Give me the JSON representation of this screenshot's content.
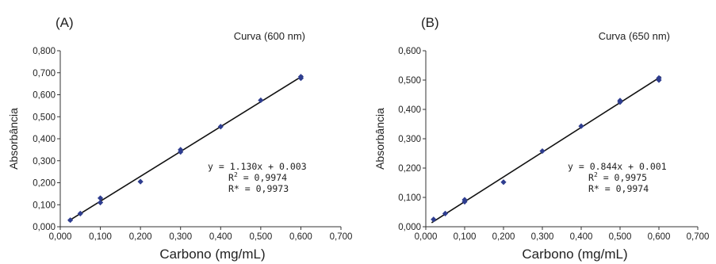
{
  "chart_data": [
    {
      "type": "scatter",
      "panel_label": "(A)",
      "title": "Curva (600 nm)",
      "xlabel": "Carbono (mg/mL)",
      "ylabel": "Absorbância",
      "xlim": [
        0,
        0.7
      ],
      "ylim": [
        0,
        0.8
      ],
      "x_ticks": [
        "0,000",
        "0,100",
        "0,200",
        "0,300",
        "0,400",
        "0,500",
        "0,600",
        "0,700"
      ],
      "y_ticks": [
        "0,000",
        "0,100",
        "0,200",
        "0,300",
        "0,400",
        "0,500",
        "0,600",
        "0,700",
        "0,800"
      ],
      "x_tick_values": [
        0,
        0.1,
        0.2,
        0.3,
        0.4,
        0.5,
        0.6,
        0.7
      ],
      "y_tick_values": [
        0,
        0.1,
        0.2,
        0.3,
        0.4,
        0.5,
        0.6,
        0.7,
        0.8
      ],
      "points": [
        {
          "x": 0.025,
          "y": 0.03
        },
        {
          "x": 0.05,
          "y": 0.06
        },
        {
          "x": 0.1,
          "y": 0.11
        },
        {
          "x": 0.1,
          "y": 0.13
        },
        {
          "x": 0.2,
          "y": 0.205
        },
        {
          "x": 0.3,
          "y": 0.34
        },
        {
          "x": 0.3,
          "y": 0.35
        },
        {
          "x": 0.4,
          "y": 0.455
        },
        {
          "x": 0.5,
          "y": 0.575
        },
        {
          "x": 0.6,
          "y": 0.675
        },
        {
          "x": 0.6,
          "y": 0.682
        }
      ],
      "fit": {
        "slope": 1.13,
        "intercept": 0.003,
        "x_range": [
          0.02,
          0.605
        ]
      },
      "equation": {
        "line1": "y = 1.130x + 0.003",
        "line2_prefix": "R",
        "line2_sup": "2",
        "line2_value": " = 0,9974",
        "line3": "R* = 0,9973"
      },
      "marker_color": "#2e3d8f",
      "line_color": "#111111"
    },
    {
      "type": "scatter",
      "panel_label": "(B)",
      "title": "Curva (650 nm)",
      "xlabel": "Carbono (mg/mL)",
      "ylabel": "Absorbância",
      "xlim": [
        0,
        0.7
      ],
      "ylim": [
        0,
        0.6
      ],
      "x_ticks": [
        "0,000",
        "0,100",
        "0,200",
        "0,300",
        "0,400",
        "0,500",
        "0,600",
        "0,700"
      ],
      "y_ticks": [
        "0,000",
        "0,100",
        "0,200",
        "0,300",
        "0,400",
        "0,500",
        "0,600"
      ],
      "x_tick_values": [
        0,
        0.1,
        0.2,
        0.3,
        0.4,
        0.5,
        0.6,
        0.7
      ],
      "y_tick_values": [
        0,
        0.1,
        0.2,
        0.3,
        0.4,
        0.5,
        0.6
      ],
      "points": [
        {
          "x": 0.02,
          "y": 0.025
        },
        {
          "x": 0.05,
          "y": 0.045
        },
        {
          "x": 0.1,
          "y": 0.085
        },
        {
          "x": 0.1,
          "y": 0.092
        },
        {
          "x": 0.2,
          "y": 0.152
        },
        {
          "x": 0.3,
          "y": 0.258
        },
        {
          "x": 0.4,
          "y": 0.343
        },
        {
          "x": 0.5,
          "y": 0.425
        },
        {
          "x": 0.5,
          "y": 0.43
        },
        {
          "x": 0.6,
          "y": 0.5
        },
        {
          "x": 0.6,
          "y": 0.507
        }
      ],
      "fit": {
        "slope": 0.844,
        "intercept": 0.001,
        "x_range": [
          0.015,
          0.605
        ]
      },
      "equation": {
        "line1": "y = 0.844x + 0.001",
        "line2_prefix": "R",
        "line2_sup": "2",
        "line2_value": " = 0,9975",
        "line3": "R* = 0,9974"
      },
      "marker_color": "#2e3d8f",
      "line_color": "#111111"
    }
  ]
}
